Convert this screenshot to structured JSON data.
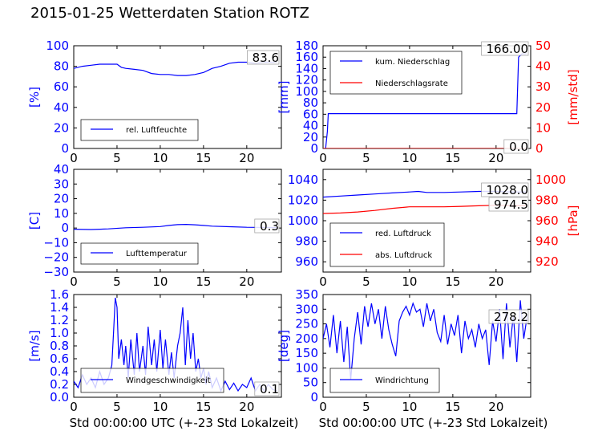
{
  "title": "2015-01-25 Wetterdaten Station ROTZ",
  "chart_data": [
    {
      "type": "line",
      "xlabel": "",
      "ylabel": "[%]",
      "xlim": [
        0,
        24
      ],
      "ylim": [
        0,
        100
      ],
      "xticks": [
        "0",
        "5",
        "10",
        "15",
        "20"
      ],
      "yticks": [
        "0",
        "20",
        "40",
        "60",
        "80",
        "100"
      ],
      "legend": {
        "placement": "lower-left"
      },
      "value_label": "83.6",
      "series": [
        {
          "name": "rel. Luftfeuchte",
          "color": "#0000ff",
          "x": [
            0,
            1,
            2,
            3,
            4,
            5,
            5.5,
            6,
            7,
            8,
            9,
            10,
            11,
            12,
            13,
            14,
            15,
            16,
            17,
            18,
            19,
            20,
            21,
            22,
            23.5
          ],
          "y": [
            78,
            80,
            81,
            82,
            82,
            82,
            79,
            78,
            77,
            76,
            73,
            72,
            72,
            71,
            71,
            72,
            74,
            78,
            80,
            83,
            84,
            84,
            83,
            84,
            84
          ]
        }
      ]
    },
    {
      "type": "line",
      "xlabel": "",
      "ylabel": "[mm]",
      "ylabel_right": "[mm/std]",
      "xlim": [
        0,
        24
      ],
      "ylim": [
        0,
        180
      ],
      "ylim_right": [
        0,
        50
      ],
      "xticks": [
        "0",
        "5",
        "10",
        "15",
        "20"
      ],
      "yticks": [
        "0",
        "20",
        "40",
        "60",
        "80",
        "100",
        "120",
        "140",
        "160",
        "180"
      ],
      "yticks_right": [
        "0",
        "10",
        "20",
        "30",
        "40",
        "50"
      ],
      "legend": {
        "placement": "top-left"
      },
      "value_labels": [
        "166.00",
        "0.0"
      ],
      "series": [
        {
          "name": "kum. Niederschlag",
          "color": "#0000ff",
          "axis": "left",
          "x": [
            0.3,
            0.5,
            0.6,
            5,
            10,
            15,
            20,
            22.4,
            22.6,
            23,
            23.5
          ],
          "y": [
            0,
            30,
            61,
            61,
            61,
            61,
            61,
            61,
            160,
            166,
            166
          ]
        },
        {
          "name": "Niederschlagsrate",
          "color": "#ff0000",
          "axis": "right",
          "x": [
            0,
            5,
            10,
            15,
            20,
            23.5
          ],
          "y": [
            0,
            0,
            0,
            0,
            0,
            0
          ]
        }
      ]
    },
    {
      "type": "line",
      "xlabel": "",
      "ylabel": "[C]",
      "xlim": [
        0,
        24
      ],
      "ylim": [
        -30,
        40
      ],
      "xticks": [
        "0",
        "5",
        "10",
        "15",
        "20"
      ],
      "yticks": [
        "−30",
        "−20",
        "−10",
        "0",
        "10",
        "20",
        "30",
        "40"
      ],
      "legend": {
        "placement": "lower-left"
      },
      "value_label": "0.3",
      "series": [
        {
          "name": "Lufttemperatur",
          "color": "#0000ff",
          "x": [
            0,
            2,
            4,
            6,
            8,
            10,
            11,
            12,
            13,
            14,
            15,
            16,
            18,
            20,
            22,
            23.5
          ],
          "y": [
            -0.8,
            -1.0,
            -0.6,
            0.2,
            0.5,
            1.0,
            1.8,
            2.3,
            2.5,
            2.2,
            1.8,
            1.3,
            0.9,
            0.5,
            0.4,
            0.3
          ]
        }
      ]
    },
    {
      "type": "line",
      "xlabel": "",
      "ylabel": "",
      "ylabel_right": "[hPa]",
      "xlim": [
        0,
        24
      ],
      "ylim": [
        950,
        1050
      ],
      "ylim_right": [
        910,
        1010
      ],
      "xticks": [
        "0",
        "5",
        "10",
        "15",
        "20"
      ],
      "yticks": [
        "960",
        "980",
        "1000",
        "1020",
        "1040"
      ],
      "yticks_right": [
        "920",
        "940",
        "960",
        "980",
        "1000"
      ],
      "legend": {
        "placement": "lower-left"
      },
      "value_labels": [
        "1028.0",
        "974.5"
      ],
      "series": [
        {
          "name": "red. Luftdruck",
          "color": "#0000ff",
          "axis": "left",
          "x": [
            0,
            2,
            4,
            6,
            8,
            10,
            11,
            12,
            14,
            16,
            18,
            20,
            22,
            23.5
          ],
          "y": [
            1023,
            1024,
            1025,
            1026,
            1027,
            1028,
            1028.5,
            1027.5,
            1027.5,
            1028,
            1028.5,
            1028.5,
            1028,
            1028
          ]
        },
        {
          "name": "abs. Luftdruck",
          "color": "#ff0000",
          "axis": "right",
          "x": [
            0,
            2,
            4,
            6,
            8,
            10,
            12,
            14,
            16,
            18,
            20,
            22,
            23.5
          ],
          "y": [
            967,
            967.5,
            968.5,
            970,
            972,
            973.5,
            973.5,
            973.5,
            974,
            974.5,
            975,
            974.5,
            974.5
          ]
        }
      ]
    },
    {
      "type": "line",
      "xlabel": "Std 00:00:00 UTC (+-23 Std Lokalzeit)",
      "ylabel": "[m/s]",
      "xlim": [
        0,
        24
      ],
      "ylim": [
        0,
        1.6
      ],
      "xticks": [
        "0",
        "5",
        "10",
        "15",
        "20"
      ],
      "yticks": [
        "0.0",
        "0.2",
        "0.4",
        "0.6",
        "0.8",
        "1.0",
        "1.2",
        "1.4",
        "1.6"
      ],
      "legend": {
        "placement": "lower-center"
      },
      "value_label": "0.1",
      "series": [
        {
          "name": "Windgeschwindigkeit",
          "color": "#0000ff",
          "x": [
            0,
            0.5,
            1,
            1.5,
            2,
            2.5,
            3,
            3.5,
            4,
            4.4,
            4.6,
            4.8,
            5,
            5.2,
            5.5,
            5.8,
            6,
            6.3,
            6.6,
            7,
            7.3,
            7.6,
            8,
            8.3,
            8.6,
            9,
            9.3,
            9.6,
            10,
            10.3,
            10.6,
            11,
            11.3,
            11.6,
            12,
            12.3,
            12.6,
            12.9,
            13.2,
            13.5,
            13.8,
            14.1,
            14.4,
            14.7,
            15,
            15.3,
            15.6,
            16,
            16.5,
            17,
            17.5,
            18,
            18.5,
            19,
            19.5,
            20,
            20.5,
            21,
            21.5,
            22,
            22.5,
            23,
            23.5
          ],
          "y": [
            0.25,
            0.15,
            0.35,
            0.2,
            0.3,
            0.15,
            0.4,
            0.2,
            0.3,
            0.5,
            1.0,
            1.55,
            1.4,
            0.6,
            0.9,
            0.5,
            0.8,
            0.3,
            0.9,
            0.35,
            1.0,
            0.4,
            0.8,
            0.35,
            1.1,
            0.5,
            0.9,
            0.4,
            1.05,
            0.45,
            0.9,
            0.35,
            0.7,
            0.3,
            0.8,
            1.0,
            1.4,
            0.5,
            1.2,
            0.6,
            1.0,
            0.4,
            0.6,
            0.3,
            0.45,
            0.2,
            0.4,
            0.15,
            0.3,
            0.1,
            0.25,
            0.12,
            0.22,
            0.1,
            0.2,
            0.15,
            0.3,
            0.1,
            0.2,
            0.1,
            0.2,
            0.12,
            0.1
          ]
        }
      ]
    },
    {
      "type": "line",
      "xlabel": "Std 00:00:00 UTC (+-23 Std Lokalzeit)",
      "ylabel": "[deg]",
      "xlim": [
        0,
        24
      ],
      "ylim": [
        0,
        350
      ],
      "xticks": [
        "0",
        "5",
        "10",
        "15",
        "20"
      ],
      "yticks": [
        "0",
        "50",
        "100",
        "150",
        "200",
        "250",
        "300",
        "350"
      ],
      "legend": {
        "placement": "lower-left"
      },
      "value_label": "278.2",
      "series": [
        {
          "name": "Windrichtung",
          "color": "#0000ff",
          "x": [
            0,
            0.4,
            0.8,
            1.2,
            1.6,
            2,
            2.4,
            2.8,
            3.2,
            3.6,
            4,
            4.4,
            4.8,
            5.2,
            5.6,
            6,
            6.4,
            6.8,
            7.2,
            7.6,
            8,
            8.4,
            8.8,
            9.2,
            9.6,
            10,
            10.4,
            10.8,
            11.2,
            11.6,
            12,
            12.4,
            12.8,
            13.2,
            13.6,
            14,
            14.4,
            14.8,
            15.2,
            15.6,
            16,
            16.4,
            16.8,
            17.2,
            17.6,
            18,
            18.4,
            18.8,
            19.2,
            19.6,
            20,
            20.4,
            20.8,
            21.2,
            21.6,
            22,
            22.4,
            22.8,
            23.2,
            23.6
          ],
          "y": [
            200,
            250,
            170,
            280,
            150,
            260,
            120,
            240,
            60,
            200,
            290,
            180,
            310,
            240,
            320,
            250,
            300,
            200,
            310,
            230,
            180,
            140,
            260,
            290,
            310,
            280,
            320,
            290,
            300,
            240,
            320,
            260,
            300,
            220,
            190,
            280,
            180,
            250,
            210,
            280,
            150,
            260,
            200,
            230,
            170,
            250,
            200,
            230,
            110,
            260,
            190,
            300,
            130,
            320,
            170,
            280,
            120,
            330,
            200,
            278
          ]
        }
      ]
    }
  ]
}
